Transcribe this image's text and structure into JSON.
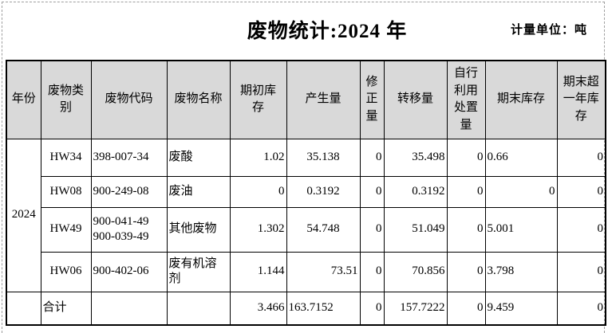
{
  "header": {
    "title": "废物统计:2024 年",
    "unit_label": "计量单位：吨"
  },
  "colors": {
    "header_bg": "#d9d9d9",
    "border": "#000000",
    "page_bg": "#ffffff",
    "page_break_dash": "#9f9f9f"
  },
  "table": {
    "headers": [
      {
        "name": "col-year",
        "text": "年份"
      },
      {
        "name": "col-waste-category",
        "text": "废物类\n别"
      },
      {
        "name": "col-waste-code",
        "text": "废物代码"
      },
      {
        "name": "col-waste-name",
        "text": "废物名称"
      },
      {
        "name": "col-opening-stock",
        "text": "期初库\n存"
      },
      {
        "name": "col-generated",
        "text": "产生量"
      },
      {
        "name": "col-correction",
        "text": "修\n正\n量"
      },
      {
        "name": "col-transferred",
        "text": "转移量"
      },
      {
        "name": "col-self-disposal",
        "text": "自行\n利用\n处置\n量"
      },
      {
        "name": "col-closing-stock",
        "text": "期末库存"
      },
      {
        "name": "col-over-one-year-stock",
        "text": "期末超\n一年库\n存"
      }
    ],
    "body_rows": [
      {
        "name": "data-row-hw34",
        "cells": [
          {
            "name": "year-cell",
            "text": "2024",
            "rowspan": 4,
            "align": "center"
          },
          {
            "name": "category-cell",
            "text": "HW34",
            "align": "center"
          },
          {
            "name": "code-cell",
            "text": "398-007-34",
            "align": "left"
          },
          {
            "name": "waste-name-cell",
            "text": "废酸",
            "align": "left"
          },
          {
            "name": "opening-stock-cell",
            "text": "1.02",
            "align": "right"
          },
          {
            "name": "generated-cell",
            "text": "35.138",
            "align": "center"
          },
          {
            "name": "correction-cell",
            "text": "0",
            "align": "right"
          },
          {
            "name": "transferred-cell",
            "text": "35.498",
            "align": "right"
          },
          {
            "name": "self-disposal-cell",
            "text": "0",
            "align": "right"
          },
          {
            "name": "closing-stock-cell",
            "text": "0.66",
            "align": "indent"
          },
          {
            "name": "over-one-year-cell",
            "text": "0",
            "align": "right"
          }
        ]
      },
      {
        "name": "data-row-hw08",
        "cells": [
          {
            "name": "category-cell",
            "text": "HW08",
            "align": "center"
          },
          {
            "name": "code-cell",
            "text": "900-249-08",
            "align": "left"
          },
          {
            "name": "waste-name-cell",
            "text": "废油",
            "align": "left"
          },
          {
            "name": "opening-stock-cell",
            "text": "0",
            "align": "right"
          },
          {
            "name": "generated-cell",
            "text": "0.3192",
            "align": "center"
          },
          {
            "name": "correction-cell",
            "text": "0",
            "align": "right"
          },
          {
            "name": "transferred-cell",
            "text": "0.3192",
            "align": "right"
          },
          {
            "name": "self-disposal-cell",
            "text": "0",
            "align": "right"
          },
          {
            "name": "closing-stock-cell",
            "text": "0",
            "align": "right"
          },
          {
            "name": "over-one-year-cell",
            "text": "0",
            "align": "right"
          }
        ]
      },
      {
        "name": "data-row-hw49",
        "cells": [
          {
            "name": "category-cell",
            "text": "HW49",
            "align": "center"
          },
          {
            "name": "code-cell",
            "text": "900-041-49\n900-039-49",
            "align": "left"
          },
          {
            "name": "waste-name-cell",
            "text": "其他废物",
            "align": "left"
          },
          {
            "name": "opening-stock-cell",
            "text": "1.302",
            "align": "right"
          },
          {
            "name": "generated-cell",
            "text": "54.748",
            "align": "center"
          },
          {
            "name": "correction-cell",
            "text": "0",
            "align": "right"
          },
          {
            "name": "transferred-cell",
            "text": "51.049",
            "align": "right"
          },
          {
            "name": "self-disposal-cell",
            "text": "0",
            "align": "right"
          },
          {
            "name": "closing-stock-cell",
            "text": "5.001",
            "align": "indent"
          },
          {
            "name": "over-one-year-cell",
            "text": "0",
            "align": "right"
          }
        ]
      },
      {
        "name": "data-row-hw06",
        "cells": [
          {
            "name": "category-cell",
            "text": "HW06",
            "align": "center"
          },
          {
            "name": "code-cell",
            "text": "900-402-06",
            "align": "left"
          },
          {
            "name": "waste-name-cell",
            "text": "废有机溶剂",
            "align": "left"
          },
          {
            "name": "opening-stock-cell",
            "text": "1.144",
            "align": "right"
          },
          {
            "name": "generated-cell",
            "text": "73.51",
            "align": "right"
          },
          {
            "name": "correction-cell",
            "text": "0",
            "align": "right"
          },
          {
            "name": "transferred-cell",
            "text": "70.856",
            "align": "right"
          },
          {
            "name": "self-disposal-cell",
            "text": "0",
            "align": "right"
          },
          {
            "name": "closing-stock-cell",
            "text": "3.798",
            "align": "indent"
          },
          {
            "name": "over-one-year-cell",
            "text": "0",
            "align": "right"
          }
        ]
      },
      {
        "name": "total-row",
        "cells": [
          {
            "name": "year-cell",
            "text": "",
            "align": "center"
          },
          {
            "name": "total-label-cell",
            "text": "合计",
            "align": "left"
          },
          {
            "name": "code-cell",
            "text": "",
            "align": "left"
          },
          {
            "name": "waste-name-cell",
            "text": "",
            "align": "left"
          },
          {
            "name": "opening-stock-cell",
            "text": "3.466",
            "align": "right"
          },
          {
            "name": "generated-cell",
            "text": "163.7152",
            "align": "left"
          },
          {
            "name": "correction-cell",
            "text": "0",
            "align": "right"
          },
          {
            "name": "transferred-cell",
            "text": "157.7222",
            "align": "right"
          },
          {
            "name": "self-disposal-cell",
            "text": "0",
            "align": "right"
          },
          {
            "name": "closing-stock-cell",
            "text": "9.459",
            "align": "indent"
          },
          {
            "name": "over-one-year-cell",
            "text": "0",
            "align": "right"
          }
        ]
      }
    ]
  }
}
